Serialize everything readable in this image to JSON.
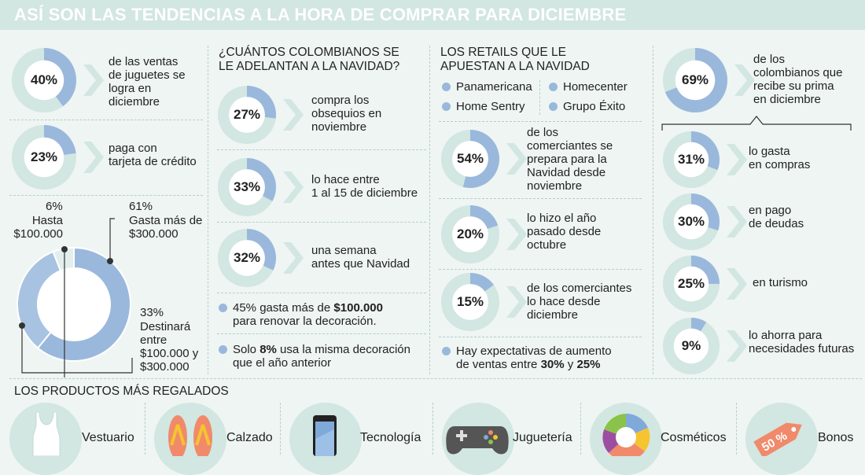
{
  "title": "ASÍ SON LAS TENDENCIAS A LA HORA DE COMPRAR PARA DICIEMBRE",
  "colors": {
    "accent": "#9ab8dc",
    "track": "#d2e6e2",
    "background": "#eef5f3"
  },
  "col1": {
    "stat1": {
      "pct": "40%",
      "value": 40,
      "text": "de las ventas\nde juguetes se\nlogra en\ndiciembre"
    },
    "stat2": {
      "pct": "23%",
      "value": 23,
      "text": "paga con\ntarjeta de crédito"
    },
    "big_donut": {
      "slices": [
        {
          "value": 61,
          "pct": "61%",
          "label": "Gasta más de\n$300.000"
        },
        {
          "value": 33,
          "pct": "33%",
          "label": "Destinará\nentre\n$100.000 y\n$300.000"
        },
        {
          "value": 6,
          "pct": "6%",
          "label": "Hasta\n$100.000"
        }
      ]
    }
  },
  "col2": {
    "header": "¿CUÁNTOS COLOMBIANOS SE\nLE ADELANTAN A LA NAVIDAD?",
    "stats": [
      {
        "pct": "27%",
        "value": 27,
        "text": "compra los\nobsequios en\nnoviembre"
      },
      {
        "pct": "33%",
        "value": 33,
        "text": "lo hace entre\n1 al 15 de diciembre"
      },
      {
        "pct": "32%",
        "value": 32,
        "text": "una semana\nantes que Navidad"
      }
    ],
    "bullet1": {
      "pre": "45% gasta más de ",
      "bold": "$100.000",
      "post": "\npara renovar la decoración."
    },
    "bullet2": {
      "pre": "Solo ",
      "bold": "8%",
      "post": " usa la misma decoración\nque el año anterior"
    }
  },
  "col3": {
    "header": "LOS RETAILS QUE LE\nAPUESTAN A LA NAVIDAD",
    "retailers": [
      "Panamericana",
      "Homecenter",
      "Home Sentry",
      "Grupo Éxito"
    ],
    "stats": [
      {
        "pct": "54%",
        "value": 54,
        "text": "de los\ncomerciantes se\nprepara para la\nNavidad desde\nnoviembre"
      },
      {
        "pct": "20%",
        "value": 20,
        "text": "lo hizo el año\npasado desde\noctubre"
      },
      {
        "pct": "15%",
        "value": 15,
        "text": "de los comerciantes\nlo hace desde\ndiciembre"
      }
    ],
    "bullet": {
      "pre": "Hay expectativas de aumento\nde ventas entre ",
      "b1": "30%",
      "mid": " y ",
      "b2": "25%"
    }
  },
  "col4": {
    "main": {
      "pct": "69%",
      "value": 69,
      "text": "de los\ncolombianos que\nrecibe su prima\nen diciembre"
    },
    "stats": [
      {
        "pct": "31%",
        "value": 31,
        "text": "lo gasta\nen compras"
      },
      {
        "pct": "30%",
        "value": 30,
        "text": "en pago\nde deudas"
      },
      {
        "pct": "25%",
        "value": 25,
        "text": "en turismo"
      },
      {
        "pct": "9%",
        "value": 9,
        "text": "lo ahorra para\nnecesidades futuras"
      }
    ]
  },
  "products": {
    "header": "LOS PRODUCTOS MÁS REGALADOS",
    "items": [
      {
        "label": "Vestuario",
        "icon": "tank-top-icon"
      },
      {
        "label": "Calzado",
        "icon": "flip-flops-icon"
      },
      {
        "label": "Tecnología",
        "icon": "smartphone-icon"
      },
      {
        "label": "Juguetería",
        "icon": "gamepad-icon"
      },
      {
        "label": "Cosméticos",
        "icon": "palette-icon"
      },
      {
        "label": "Bonos",
        "icon": "price-tag-icon"
      }
    ],
    "tag_text": "50 %"
  }
}
